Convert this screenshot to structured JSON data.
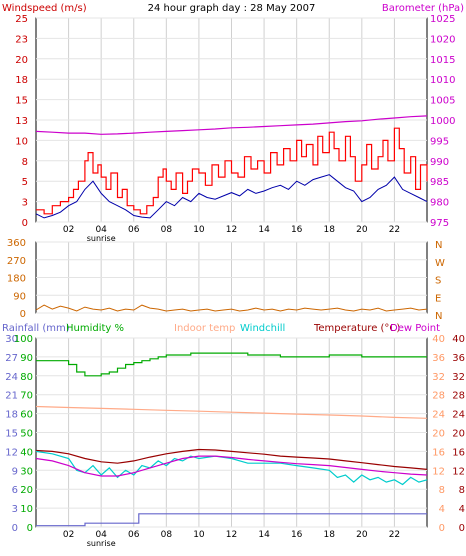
{
  "chart_data": [
    {
      "type": "line",
      "id": "wind-baro",
      "title": "24 hour graph day : 28 May 2007",
      "ylabel_left": "Windspeed (m/s)",
      "ylabel_right": "Barometer (hPa)",
      "xlim": [
        0,
        24
      ],
      "x_ticks": [
        "02",
        "04",
        "06",
        "08",
        "10",
        "12",
        "14",
        "16",
        "18",
        "20",
        "22"
      ],
      "x_tick_values": [
        2,
        4,
        6,
        8,
        10,
        12,
        14,
        16,
        18,
        20,
        22
      ],
      "sunrise_label": "sunrise",
      "sunrise_x": 4,
      "grid": true,
      "y_left": {
        "range": [
          0,
          25
        ],
        "ticks": [
          "0",
          "3",
          "5",
          "8",
          "10",
          "13",
          "15",
          "18",
          "20",
          "23",
          "25"
        ],
        "tick_values": [
          0,
          2.5,
          5,
          7.5,
          10,
          12.5,
          15,
          17.5,
          20,
          22.5,
          25
        ]
      },
      "y_right": {
        "range": [
          975,
          1025
        ],
        "ticks": [
          "975",
          "980",
          "985",
          "990",
          "995",
          "1000",
          "1005",
          "1010",
          "1015",
          "1020",
          "1025"
        ],
        "tick_values": [
          975,
          980,
          985,
          990,
          995,
          1000,
          1005,
          1010,
          1015,
          1020,
          1025
        ]
      },
      "series": [
        {
          "name": "Windspeed (m/s)",
          "color": "#ff0000",
          "axis": "left",
          "x": [
            0,
            0.5,
            1,
            1.5,
            2,
            2.3,
            2.6,
            3,
            3.2,
            3.5,
            3.8,
            4,
            4.3,
            4.6,
            5,
            5.3,
            5.6,
            6,
            6.4,
            6.8,
            7.2,
            7.5,
            7.8,
            8,
            8.3,
            8.6,
            9,
            9.3,
            9.6,
            10,
            10.4,
            10.8,
            11.2,
            11.6,
            12,
            12.4,
            12.8,
            13.2,
            13.6,
            14,
            14.4,
            14.8,
            15.2,
            15.6,
            16,
            16.3,
            16.6,
            17,
            17.3,
            17.6,
            18,
            18.3,
            18.6,
            19,
            19.3,
            19.6,
            20,
            20.3,
            20.6,
            21,
            21.3,
            21.6,
            22,
            22.3,
            22.6,
            23,
            23.3,
            23.6,
            24
          ],
          "values": [
            1.5,
            1,
            2,
            2.5,
            3,
            4,
            5,
            7.5,
            8.5,
            6,
            7,
            5.5,
            4,
            6,
            3,
            4,
            2,
            1.5,
            1,
            2,
            3,
            5.5,
            6.5,
            5,
            4,
            6,
            3.5,
            5,
            6.5,
            6,
            4.5,
            7,
            5.5,
            7.5,
            6,
            5.5,
            8,
            6.5,
            7.5,
            6,
            8.5,
            7,
            9,
            7.5,
            10,
            8,
            9.5,
            7,
            10.5,
            8.5,
            11,
            9,
            7.5,
            10.5,
            8,
            5,
            7,
            9.5,
            6.5,
            8,
            10,
            7.5,
            11.5,
            9,
            6,
            8,
            4,
            7,
            5
          ]
        },
        {
          "name": "Windspeed avg",
          "color": "#0000aa",
          "axis": "left",
          "x": [
            0,
            0.5,
            1,
            1.5,
            2,
            2.5,
            3,
            3.5,
            4,
            4.5,
            5,
            5.5,
            6,
            6.5,
            7,
            7.5,
            8,
            8.5,
            9,
            9.5,
            10,
            10.5,
            11,
            11.5,
            12,
            12.5,
            13,
            13.5,
            14,
            14.5,
            15,
            15.5,
            16,
            16.5,
            17,
            17.5,
            18,
            18.5,
            19,
            19.5,
            20,
            20.5,
            21,
            21.5,
            22,
            22.5,
            23,
            23.5,
            24
          ],
          "values": [
            1,
            0.5,
            0.8,
            1.2,
            2,
            2.5,
            4,
            5,
            3.5,
            2.5,
            2,
            1.5,
            0.8,
            0.6,
            0.5,
            1.5,
            2.5,
            2,
            3,
            2.5,
            3.5,
            3,
            2.8,
            3.2,
            3.6,
            3.2,
            4,
            3.5,
            3.8,
            4.2,
            4.5,
            4,
            5,
            4.5,
            5.2,
            5.5,
            5.8,
            5,
            4.2,
            3.8,
            2.5,
            3,
            4,
            4.5,
            5.5,
            4,
            3.5,
            3,
            2.5
          ]
        },
        {
          "name": "Barometer (hPa)",
          "color": "#cc00cc",
          "axis": "right",
          "x": [
            0,
            1,
            2,
            3,
            4,
            5,
            6,
            7,
            8,
            9,
            10,
            11,
            12,
            13,
            14,
            15,
            16,
            17,
            18,
            19,
            20,
            21,
            22,
            23,
            24
          ],
          "values": [
            997.2,
            997,
            996.8,
            996.8,
            996.5,
            996.6,
            996.8,
            997,
            997.2,
            997.4,
            997.6,
            997.8,
            998.1,
            998.2,
            998.4,
            998.6,
            998.8,
            999,
            999.3,
            999.6,
            999.8,
            1000.2,
            1000.5,
            1000.8,
            1001
          ]
        }
      ]
    },
    {
      "type": "line",
      "id": "wind-direction",
      "xlim": [
        0,
        24
      ],
      "y_left": {
        "range": [
          0,
          360
        ],
        "ticks": [
          "0",
          "90",
          "180",
          "270",
          "360"
        ],
        "tick_values": [
          0,
          90,
          180,
          270,
          360
        ]
      },
      "y_right_labels": [
        "N",
        "W",
        "S",
        "E",
        "N"
      ],
      "grid": true,
      "series": [
        {
          "name": "Wind direction",
          "color": "#cc6600",
          "x": [
            0,
            0.5,
            1,
            1.5,
            2,
            2.5,
            3,
            3.5,
            4,
            4.5,
            5,
            5.5,
            6,
            6.5,
            7,
            7.5,
            8,
            8.5,
            9,
            9.5,
            10,
            10.5,
            11,
            11.5,
            12,
            12.5,
            13,
            13.5,
            14,
            14.5,
            15,
            15.5,
            16,
            16.5,
            17,
            17.5,
            18,
            18.5,
            19,
            19.5,
            20,
            20.5,
            21,
            21.5,
            22,
            22.5,
            23,
            23.5,
            24
          ],
          "values": [
            15,
            40,
            20,
            35,
            25,
            10,
            30,
            20,
            15,
            25,
            10,
            20,
            15,
            40,
            25,
            20,
            10,
            15,
            20,
            10,
            15,
            20,
            10,
            15,
            20,
            10,
            15,
            25,
            15,
            20,
            10,
            20,
            15,
            25,
            20,
            15,
            20,
            25,
            15,
            10,
            20,
            15,
            25,
            10,
            15,
            20,
            25,
            15,
            20
          ]
        }
      ]
    },
    {
      "type": "line",
      "id": "temp-humidity",
      "xlim": [
        0,
        24
      ],
      "x_ticks": [
        "02",
        "04",
        "06",
        "08",
        "10",
        "12",
        "14",
        "16",
        "18",
        "20",
        "22"
      ],
      "x_tick_values": [
        2,
        4,
        6,
        8,
        10,
        12,
        14,
        16,
        18,
        20,
        22
      ],
      "sunrise_label": "sunrise",
      "sunrise_x": 4,
      "grid": true,
      "legend": [
        {
          "label": "Rainfall (mm)",
          "color": "#6666cc"
        },
        {
          "label": "Humidity %",
          "color": "#00aa00"
        },
        {
          "label": "Indoor temp",
          "color": "#ffaa88"
        },
        {
          "label": "Windchill",
          "color": "#00cccc"
        },
        {
          "label": "Temperature (°C)",
          "color": "#990000"
        },
        {
          "label": "Dew Point",
          "color": "#cc00cc"
        }
      ],
      "y_left_rain": {
        "range": [
          0,
          30
        ],
        "ticks": [
          "0",
          "3",
          "6",
          "9",
          "12",
          "15",
          "18",
          "21",
          "24",
          "27",
          "30"
        ],
        "tick_values": [
          0,
          3,
          6,
          9,
          12,
          15,
          18,
          21,
          24,
          27,
          30
        ]
      },
      "y_left_humidity": {
        "range": [
          0,
          100
        ],
        "ticks": [
          "0",
          "10",
          "20",
          "30",
          "40",
          "50",
          "60",
          "70",
          "80",
          "90",
          "100"
        ],
        "tick_values": [
          0,
          10,
          20,
          30,
          40,
          50,
          60,
          70,
          80,
          90,
          100
        ]
      },
      "y_right": {
        "range": [
          0,
          40
        ],
        "ticks": [
          "0",
          "4",
          "8",
          "12",
          "16",
          "20",
          "24",
          "28",
          "32",
          "36",
          "40"
        ],
        "tick_values": [
          0,
          4,
          8,
          12,
          16,
          20,
          24,
          28,
          32,
          36,
          40
        ]
      },
      "series": [
        {
          "name": "Humidity %",
          "color": "#00aa00",
          "axis": "humidity",
          "x": [
            0,
            1,
            2,
            2.5,
            3,
            3.5,
            4,
            4.5,
            5,
            5.5,
            6,
            6.5,
            7,
            7.5,
            8,
            8.5,
            9,
            9.5,
            10,
            11,
            12,
            13,
            14,
            15,
            16,
            17,
            18,
            19,
            20,
            21,
            22,
            23,
            24
          ],
          "values": [
            88,
            88,
            86,
            82,
            80,
            80,
            81,
            82,
            84,
            86,
            87,
            88,
            89,
            90,
            91,
            91,
            91,
            92,
            92,
            92,
            92,
            91,
            91,
            90,
            90,
            90,
            91,
            91,
            90,
            90,
            90,
            90,
            90
          ]
        },
        {
          "name": "Indoor temp",
          "color": "#ffaa88",
          "axis": "temp",
          "x": [
            0,
            2,
            4,
            6,
            8,
            10,
            12,
            14,
            16,
            18,
            20,
            22,
            24
          ],
          "values": [
            25.5,
            25.3,
            25.1,
            24.9,
            24.7,
            24.5,
            24.3,
            24.1,
            23.9,
            23.7,
            23.5,
            23.2,
            23
          ]
        },
        {
          "name": "Temperature (°C)",
          "color": "#990000",
          "axis": "temp",
          "x": [
            0,
            1,
            2,
            3,
            4,
            5,
            6,
            7,
            8,
            9,
            10,
            11,
            12,
            13,
            14,
            15,
            16,
            17,
            18,
            19,
            20,
            21,
            22,
            23,
            24
          ],
          "values": [
            16.2,
            16,
            15.5,
            14.5,
            13.8,
            13.5,
            14,
            14.8,
            15.5,
            16,
            16.4,
            16.3,
            16,
            15.7,
            15.4,
            15,
            14.8,
            14.6,
            14.4,
            14,
            13.6,
            13.2,
            12.8,
            12.5,
            12.2
          ]
        },
        {
          "name": "Windchill",
          "color": "#00cccc",
          "axis": "temp",
          "x": [
            0,
            1,
            2,
            2.5,
            3,
            3.5,
            4,
            4.5,
            5,
            5.5,
            6,
            6.5,
            7,
            7.5,
            8,
            8.5,
            9,
            9.5,
            10,
            11,
            12,
            13,
            14,
            15,
            16,
            17,
            18,
            18.5,
            19,
            19.5,
            20,
            20.5,
            21,
            21.5,
            22,
            22.5,
            23,
            23.5,
            24
          ],
          "values": [
            16,
            15.5,
            14.5,
            12,
            11.5,
            13,
            11,
            12.5,
            10.5,
            12,
            11,
            13,
            12.5,
            14,
            13,
            14.5,
            14,
            15,
            14.5,
            15,
            14.5,
            13.5,
            13.5,
            13.5,
            13,
            12.5,
            12,
            10.5,
            11,
            9.5,
            11,
            10,
            10.5,
            9.5,
            10,
            9,
            10.5,
            9.5,
            10
          ]
        },
        {
          "name": "Dew Point",
          "color": "#cc00cc",
          "axis": "temp",
          "x": [
            0,
            1,
            2,
            3,
            4,
            5,
            6,
            7,
            8,
            9,
            10,
            11,
            12,
            13,
            14,
            15,
            16,
            17,
            18,
            19,
            20,
            21,
            22,
            23,
            24
          ],
          "values": [
            14.5,
            14,
            13,
            11.5,
            10.8,
            10.8,
            11.5,
            12.5,
            13.5,
            14.5,
            15,
            15,
            14.7,
            14.3,
            14,
            13.7,
            13.4,
            13.2,
            13,
            12.6,
            12.2,
            11.8,
            11.5,
            11.2,
            11
          ]
        },
        {
          "name": "Rainfall (mm)",
          "color": "#6666cc",
          "axis": "rain",
          "x": [
            0,
            3,
            3.01,
            6.3,
            6.31,
            24
          ],
          "values": [
            0.2,
            0.2,
            0.6,
            0.6,
            2.1,
            2.1
          ]
        }
      ]
    }
  ]
}
